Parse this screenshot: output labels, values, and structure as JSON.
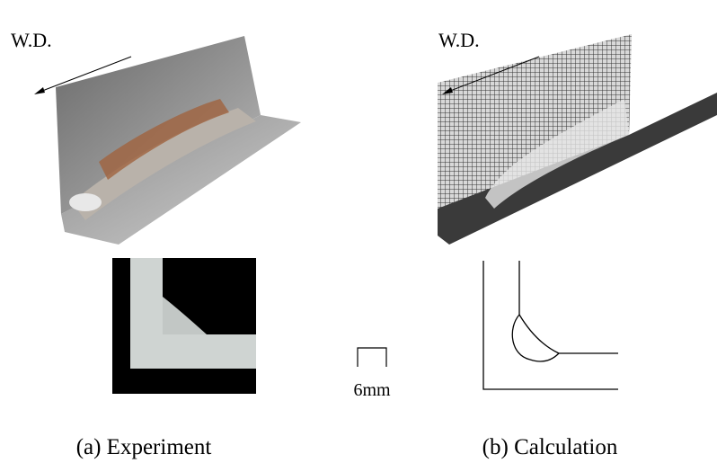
{
  "panels": [
    {
      "direction_label": "W.D.",
      "caption": "(a) Experiment"
    },
    {
      "direction_label": "W.D.",
      "caption": "(b) Calculation"
    }
  ],
  "scale_bar": "6mm"
}
